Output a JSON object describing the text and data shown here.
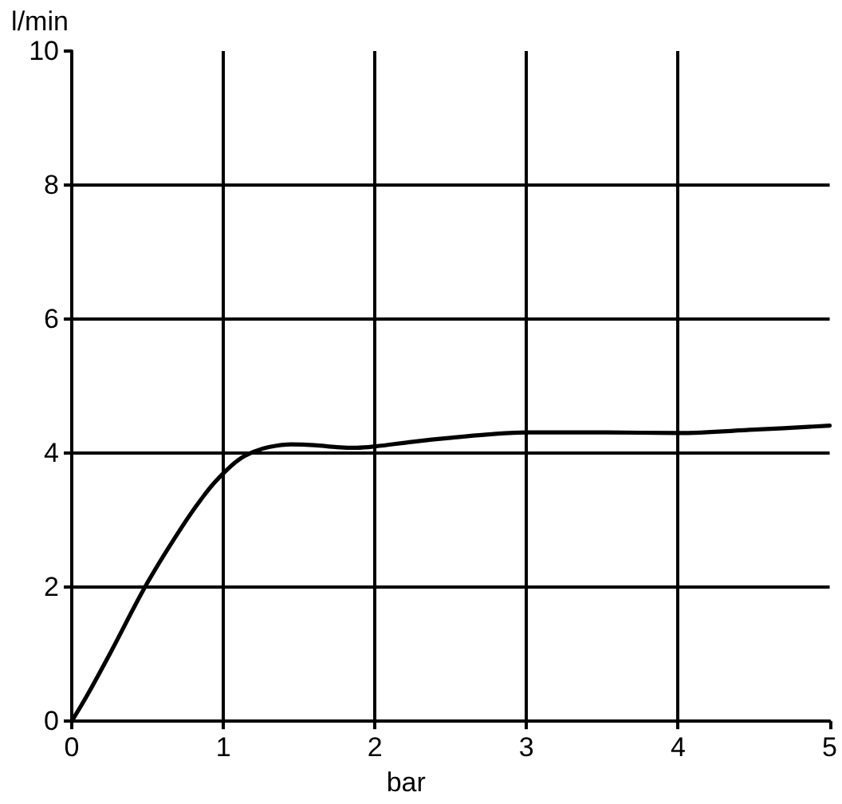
{
  "chart_data": {
    "type": "line",
    "xlabel": "bar",
    "ylabel": "l/min",
    "x": [
      0,
      0.1,
      0.25,
      0.5,
      0.75,
      0.9,
      1,
      1.1,
      1.2,
      1.3,
      1.45,
      1.6,
      1.75,
      1.88,
      2,
      2.25,
      2.5,
      2.75,
      3,
      3.5,
      4,
      4.5,
      5
    ],
    "values": [
      0,
      0.38,
      1.0,
      2.07,
      2.98,
      3.45,
      3.7,
      3.9,
      4.02,
      4.09,
      4.13,
      4.12,
      4.09,
      4.08,
      4.1,
      4.17,
      4.23,
      4.28,
      4.31,
      4.31,
      4.3,
      4.35,
      4.41
    ],
    "color": "#000000",
    "xlim": [
      0,
      5
    ],
    "ylim": [
      0,
      10
    ],
    "xticks": [
      0,
      1,
      2,
      3,
      4,
      5
    ],
    "yticks": [
      0,
      2,
      4,
      6,
      8,
      10
    ],
    "grid": true
  }
}
